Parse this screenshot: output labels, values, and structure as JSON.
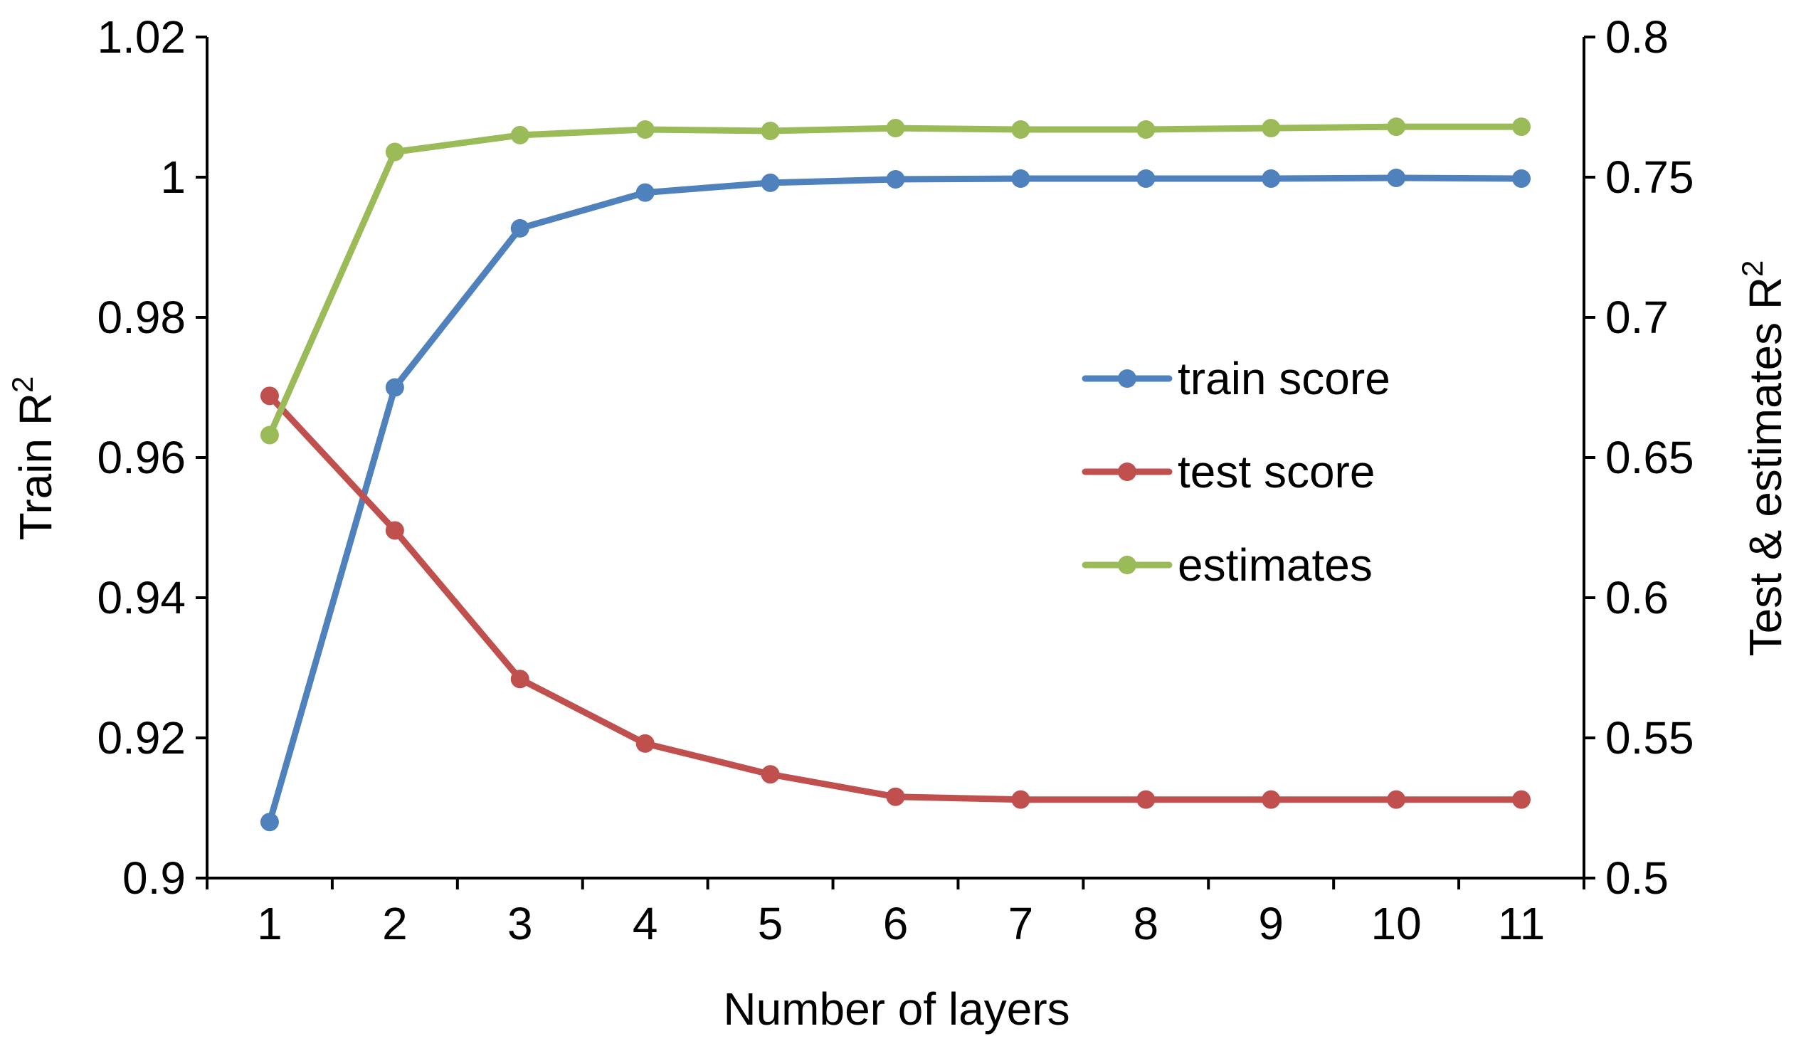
{
  "chart_data": {
    "type": "line",
    "title": "",
    "xlabel": "Number of layers",
    "ylabel_left": "Train R",
    "ylabel_left_sup": "2",
    "ylabel_right": "Test & estimates R",
    "ylabel_right_sup": "2",
    "x": [
      1,
      2,
      3,
      4,
      5,
      6,
      7,
      8,
      9,
      10,
      11
    ],
    "x_tick_labels": [
      "1",
      "2",
      "3",
      "4",
      "5",
      "6",
      "7",
      "8",
      "9",
      "10",
      "11"
    ],
    "ylim_left": [
      0.9,
      1.02
    ],
    "ylim_right": [
      0.5,
      0.8
    ],
    "y_ticks_left": [
      "0.9",
      "0.92",
      "0.94",
      "0.96",
      "0.98",
      "1",
      "1.02"
    ],
    "y_ticks_right": [
      "0.5",
      "0.55",
      "0.6",
      "0.65",
      "0.7",
      "0.75",
      "0.8"
    ],
    "grid": false,
    "legend_position": "right-center",
    "series": [
      {
        "name": "train score",
        "axis": "left",
        "color": "#4f81bd",
        "values": [
          0.908,
          0.97,
          0.9927,
          0.9978,
          0.9992,
          0.9997,
          0.9998,
          0.9998,
          0.9998,
          0.9999,
          0.9998
        ]
      },
      {
        "name": "test score",
        "axis": "right",
        "color": "#c0504d",
        "values": [
          0.672,
          0.624,
          0.571,
          0.548,
          0.537,
          0.529,
          0.528,
          0.528,
          0.528,
          0.528,
          0.528
        ]
      },
      {
        "name": "estimates",
        "axis": "right",
        "color": "#9bbb59",
        "values": [
          0.658,
          0.759,
          0.765,
          0.767,
          0.7665,
          0.7675,
          0.767,
          0.767,
          0.7675,
          0.768,
          0.768
        ]
      }
    ]
  }
}
